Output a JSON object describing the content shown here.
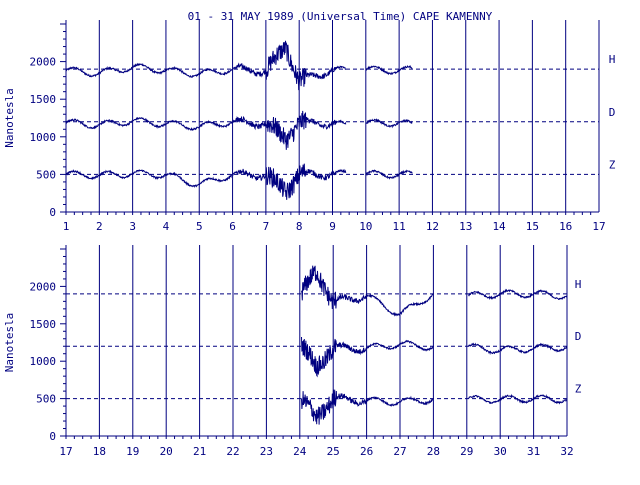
{
  "title": "01 - 31 MAY 1989 (Universal Time) CAPE KAMENNY",
  "colors": {
    "ink": "#000080",
    "background": "#ffffff"
  },
  "chart_data": [
    {
      "type": "line",
      "ylabel": "Nanotesla",
      "xlim": [
        1,
        17
      ],
      "ylim": [
        0,
        2500
      ],
      "yticks": [
        0,
        500,
        1000,
        1500,
        2000
      ],
      "xticks": [
        1,
        2,
        3,
        4,
        5,
        6,
        7,
        8,
        9,
        10,
        11,
        12,
        13,
        14,
        15,
        16,
        17
      ],
      "grid": true,
      "segments": [
        [
          1,
          9.4
        ],
        [
          10,
          11.4
        ]
      ],
      "storm": {
        "day": 7.6
      },
      "series": [
        {
          "name": "H",
          "baseline": 1900,
          "values_x": [
            1,
            2,
            3,
            4,
            5,
            6,
            7,
            7.6,
            8,
            9,
            9.4,
            10,
            11,
            11.4
          ],
          "values_y": [
            1870,
            1800,
            1950,
            1870,
            1780,
            1900,
            1850,
            2450,
            1600,
            1880,
            1860,
            1890,
            1870,
            1880
          ]
        },
        {
          "name": "D",
          "baseline": 1200,
          "values_x": [
            1,
            2,
            3,
            4,
            5,
            6,
            7,
            7.6,
            8,
            9,
            9.4,
            10,
            11,
            11.4
          ],
          "values_y": [
            1180,
            1120,
            1220,
            1150,
            1080,
            1200,
            1150,
            800,
            1180,
            1160,
            1100,
            1160,
            1180,
            1120
          ]
        },
        {
          "name": "Z",
          "baseline": 500,
          "values_x": [
            1,
            2,
            3,
            4,
            5,
            6,
            7,
            7.6,
            8,
            9,
            9.4,
            10,
            11,
            11.4
          ],
          "values_y": [
            500,
            480,
            520,
            490,
            250,
            500,
            480,
            100,
            500,
            500,
            510,
            500,
            500,
            480
          ]
        }
      ]
    },
    {
      "type": "line",
      "ylabel": "Nanotesla",
      "xlim": [
        17,
        32
      ],
      "ylim": [
        0,
        2500
      ],
      "yticks": [
        0,
        500,
        1000,
        1500,
        2000
      ],
      "xticks": [
        17,
        18,
        19,
        20,
        21,
        22,
        23,
        24,
        25,
        26,
        27,
        28,
        29,
        30,
        31,
        32
      ],
      "grid": true,
      "segments": [
        [
          24.05,
          28
        ],
        [
          29.05,
          32
        ]
      ],
      "storm": {
        "day": 24.5
      },
      "series": [
        {
          "name": "H",
          "baseline": 1900,
          "values_x": [
            24.05,
            24.5,
            25,
            26,
            27,
            28,
            29.05,
            30,
            31,
            32
          ],
          "values_y": [
            1900,
            2450,
            1700,
            1850,
            1400,
            1900,
            1850,
            1900,
            1900,
            1850
          ]
        },
        {
          "name": "D",
          "baseline": 1200,
          "values_x": [
            24.05,
            24.5,
            25,
            26,
            27,
            28,
            29.05,
            30,
            31,
            32
          ],
          "values_y": [
            1200,
            700,
            1150,
            1150,
            1250,
            1180,
            1180,
            1100,
            1150,
            1180
          ]
        },
        {
          "name": "Z",
          "baseline": 500,
          "values_x": [
            24.05,
            24.5,
            25,
            26,
            27,
            28,
            29.05,
            30,
            31,
            32
          ],
          "values_y": [
            450,
            50,
            500,
            450,
            420,
            480,
            480,
            480,
            500,
            480
          ]
        }
      ]
    }
  ]
}
